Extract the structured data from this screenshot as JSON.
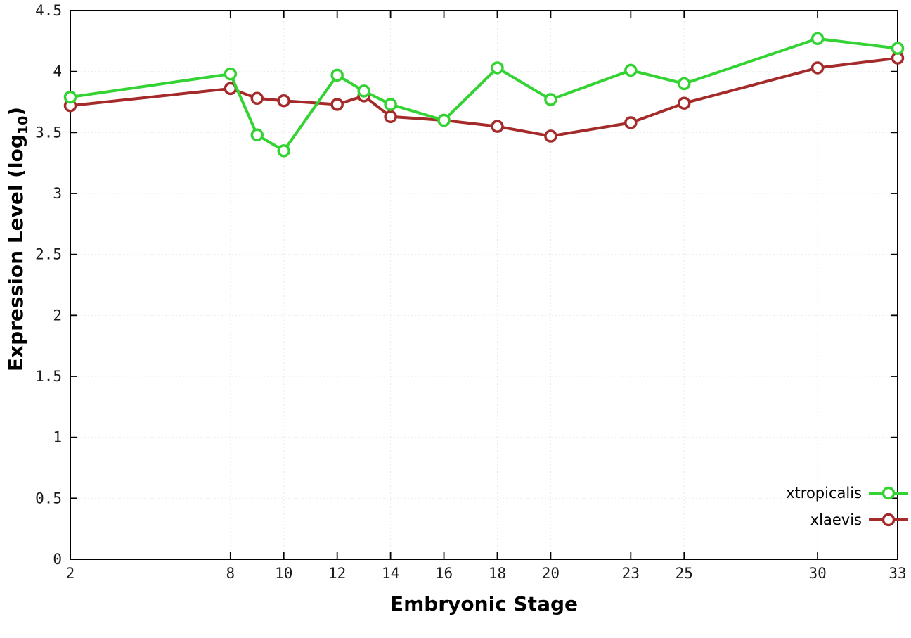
{
  "chart_data": {
    "type": "line",
    "title": "",
    "xlabel": "Embryonic Stage",
    "ylabel": "Expression Level (log10)",
    "xlim": [
      2,
      33
    ],
    "ylim": [
      0,
      4.5
    ],
    "xticks": [
      2,
      8,
      10,
      12,
      14,
      16,
      18,
      20,
      23,
      25,
      30,
      33
    ],
    "yticks": [
      0,
      0.5,
      1,
      1.5,
      2,
      2.5,
      3,
      3.5,
      4,
      4.5
    ],
    "grid": true,
    "legend_position": "bottom-right",
    "marker": "open-circle",
    "x": [
      2,
      8,
      9,
      10,
      12,
      13,
      14,
      16,
      18,
      20,
      23,
      25,
      30,
      33
    ],
    "series": [
      {
        "name": "xtropicalis",
        "color": "#33d333",
        "values": [
          3.79,
          3.98,
          3.48,
          3.35,
          3.97,
          3.84,
          3.73,
          3.6,
          4.03,
          3.77,
          4.01,
          3.9,
          4.27,
          4.19
        ]
      },
      {
        "name": "xlaevis",
        "color": "#a52a2a",
        "values": [
          3.72,
          3.86,
          3.78,
          3.76,
          3.73,
          3.8,
          3.63,
          3.6,
          3.55,
          3.47,
          3.58,
          3.74,
          4.03,
          4.11
        ]
      }
    ]
  }
}
